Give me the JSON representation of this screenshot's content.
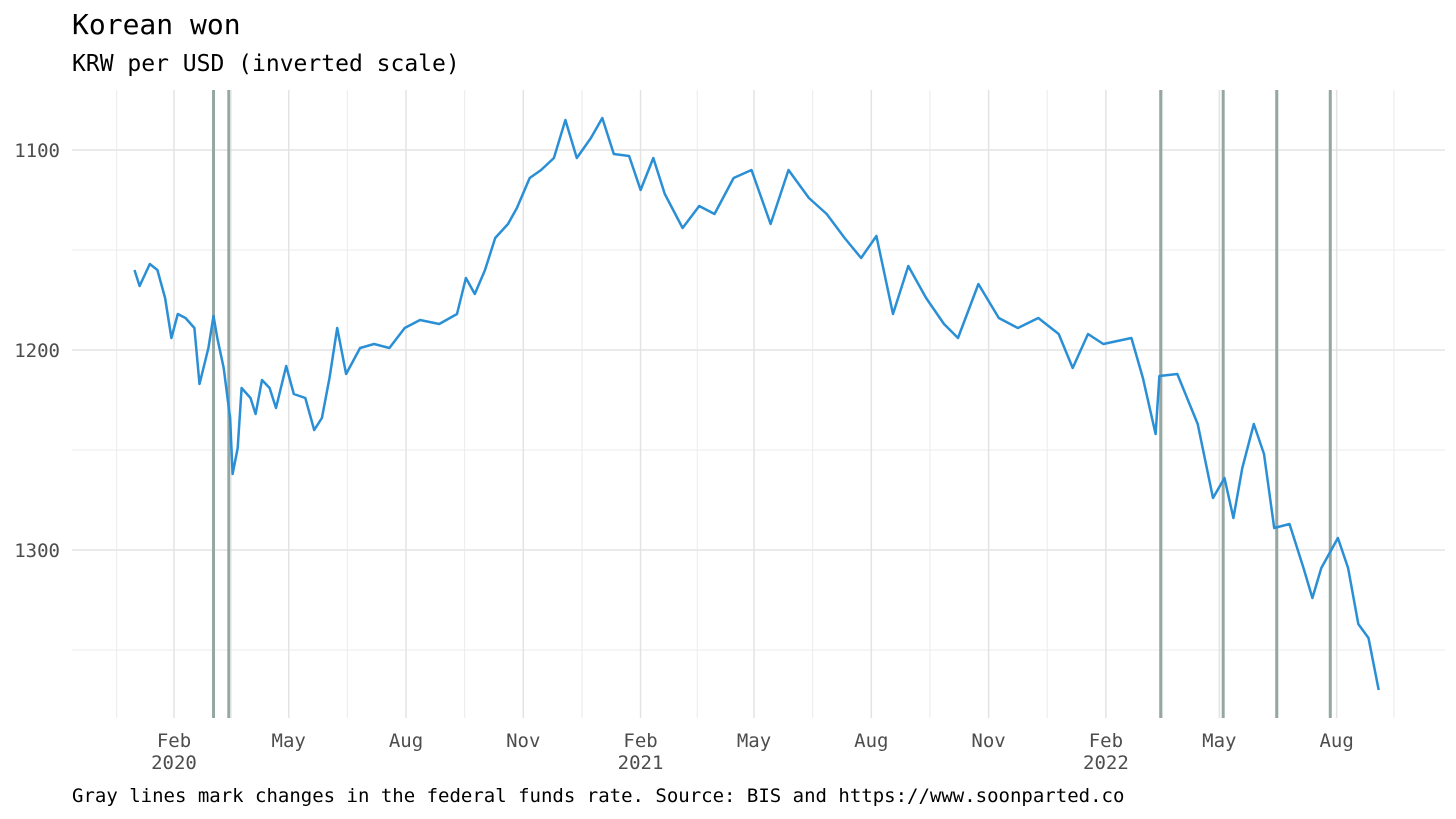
{
  "chart_data": {
    "type": "line",
    "title": "Korean won",
    "subtitle": "KRW per USD (inverted scale)",
    "caption": "Gray lines mark changes in the federal funds rate. Source: BIS and https://www.soonparted.co",
    "y_inverted": true,
    "grid": true,
    "ylim": [
      1070,
      1384
    ],
    "yticks": [
      1100,
      1200,
      1300
    ],
    "xlim": [
      "2019-11-13",
      "2022-10-25"
    ],
    "xticks": [
      {
        "value": "2020-02-01",
        "label": "Feb\n2020"
      },
      {
        "value": "2020-05-01",
        "label": "May"
      },
      {
        "value": "2020-08-01",
        "label": "Aug"
      },
      {
        "value": "2020-11-01",
        "label": "Nov"
      },
      {
        "value": "2021-02-01",
        "label": "Feb\n2021"
      },
      {
        "value": "2021-05-01",
        "label": "May"
      },
      {
        "value": "2021-08-01",
        "label": "Aug"
      },
      {
        "value": "2021-11-01",
        "label": "Nov"
      },
      {
        "value": "2022-02-01",
        "label": "Feb\n2022"
      },
      {
        "value": "2022-05-01",
        "label": "May"
      },
      {
        "value": "2022-08-01",
        "label": "Aug"
      }
    ],
    "vlines": [
      "2020-03-03",
      "2020-03-15",
      "2022-03-16",
      "2022-05-04",
      "2022-06-15",
      "2022-07-27"
    ],
    "vline_color": "#95a7a3",
    "x": [
      "2020-01-01",
      "2020-01-05",
      "2020-01-13",
      "2020-01-19",
      "2020-01-25",
      "2020-01-30",
      "2020-02-04",
      "2020-02-10",
      "2020-02-17",
      "2020-02-21",
      "2020-02-28",
      "2020-03-03",
      "2020-03-06",
      "2020-03-11",
      "2020-03-16",
      "2020-03-18",
      "2020-03-22",
      "2020-03-25",
      "2020-04-01",
      "2020-04-05",
      "2020-04-10",
      "2020-04-16",
      "2020-04-21",
      "2020-04-29",
      "2020-05-05",
      "2020-05-14",
      "2020-05-21",
      "2020-05-27",
      "2020-06-02",
      "2020-06-08",
      "2020-06-15",
      "2020-06-26",
      "2020-07-07",
      "2020-07-19",
      "2020-07-31",
      "2020-08-12",
      "2020-08-27",
      "2020-09-10",
      "2020-09-17",
      "2020-09-24",
      "2020-10-02",
      "2020-10-10",
      "2020-10-20",
      "2020-10-27",
      "2020-11-06",
      "2020-11-15",
      "2020-11-25",
      "2020-12-04",
      "2020-12-13",
      "2020-12-24",
      "2021-01-02",
      "2021-01-11",
      "2021-01-23",
      "2021-02-01",
      "2021-02-11",
      "2021-02-20",
      "2021-03-06",
      "2021-03-19",
      "2021-03-31",
      "2021-04-15",
      "2021-04-29",
      "2021-05-14",
      "2021-05-28",
      "2021-06-13",
      "2021-06-27",
      "2021-07-11",
      "2021-07-24",
      "2021-08-05",
      "2021-08-18",
      "2021-08-30",
      "2021-09-13",
      "2021-09-27",
      "2021-10-08",
      "2021-10-24",
      "2021-11-09",
      "2021-11-24",
      "2021-12-10",
      "2021-12-26",
      "2022-01-06",
      "2022-01-18",
      "2022-01-30",
      "2022-02-21",
      "2022-03-02",
      "2022-03-12",
      "2022-03-15",
      "2022-03-29",
      "2022-04-14",
      "2022-04-26",
      "2022-05-05",
      "2022-05-12",
      "2022-05-19",
      "2022-05-28",
      "2022-06-05",
      "2022-06-13",
      "2022-06-25",
      "2022-07-06",
      "2022-07-13",
      "2022-07-20",
      "2022-08-02",
      "2022-08-10",
      "2022-08-18",
      "2022-08-26",
      "2022-09-03"
    ],
    "series": [
      {
        "name": "KRW per USD",
        "color": "#2a8fd5",
        "values": [
          1160,
          1168,
          1157,
          1160,
          1174,
          1194,
          1182,
          1184,
          1189,
          1217,
          1199,
          1183,
          1194,
          1209,
          1234,
          1262,
          1249,
          1219,
          1224,
          1232,
          1215,
          1219,
          1229,
          1208,
          1222,
          1224,
          1240,
          1234,
          1214,
          1189,
          1212,
          1199,
          1197,
          1199,
          1189,
          1185,
          1187,
          1182,
          1164,
          1172,
          1160,
          1144,
          1137,
          1129,
          1114,
          1110,
          1104,
          1085,
          1104,
          1094,
          1084,
          1102,
          1103,
          1120,
          1104,
          1122,
          1139,
          1128,
          1132,
          1114,
          1110,
          1137,
          1110,
          1124,
          1132,
          1144,
          1154,
          1143,
          1182,
          1158,
          1174,
          1187,
          1194,
          1167,
          1184,
          1189,
          1184,
          1192,
          1209,
          1192,
          1197,
          1194,
          1214,
          1242,
          1213,
          1212,
          1237,
          1274,
          1264,
          1284,
          1259,
          1237,
          1252,
          1289,
          1287,
          1309,
          1324,
          1309,
          1294,
          1309,
          1337,
          1344,
          1370
        ]
      }
    ]
  }
}
